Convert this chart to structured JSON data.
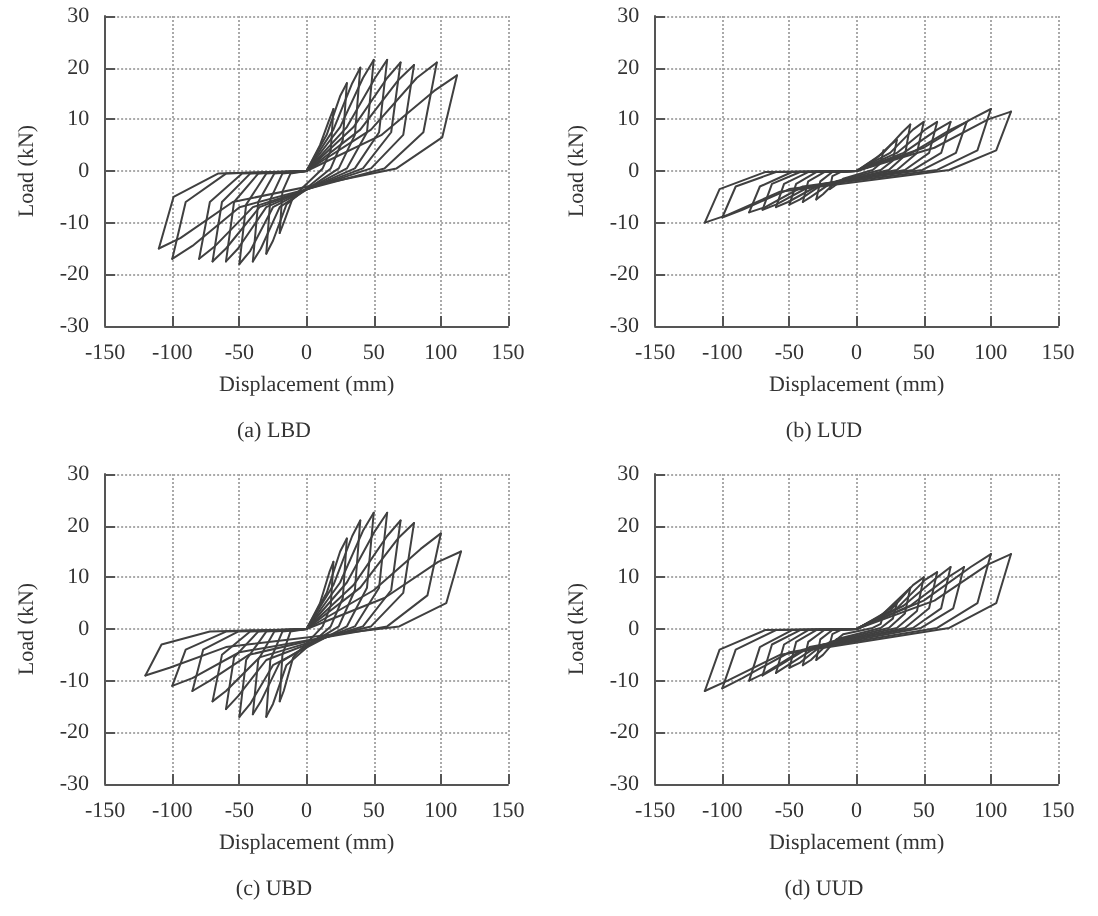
{
  "chart_data": [
    {
      "type": "line",
      "title": "(a) LBD",
      "xlabel": "Displacement (mm)",
      "ylabel": "Load (kN)",
      "xlim": [
        -150,
        150
      ],
      "ylim": [
        -30,
        30
      ],
      "xticks": [
        -150,
        -100,
        -50,
        0,
        50,
        100,
        150
      ],
      "yticks": [
        -30,
        -20,
        -10,
        0,
        10,
        20,
        30
      ],
      "grid": true,
      "marker": "none",
      "line_style": "solid",
      "series": [
        {
          "color": "#404040",
          "x": [
            0,
            10,
            17,
            20
          ],
          "values": [
            0,
            5,
            10,
            12
          ]
        },
        {
          "color": "#404040",
          "x": [
            -20,
            -17,
            -10,
            12,
            18,
            20
          ],
          "values": [
            -12,
            -10,
            -5,
            0.5,
            4,
            12
          ]
        },
        {
          "color": "#404040",
          "x": [
            -20,
            -18,
            -12,
            0,
            15,
            25,
            30
          ],
          "values": [
            -12,
            -4,
            -0.5,
            0,
            7,
            14.5,
            17
          ]
        },
        {
          "color": "#404040",
          "x": [
            -30,
            -25,
            -15,
            18,
            27,
            30
          ],
          "values": [
            -16,
            -13.5,
            -6.5,
            0.5,
            6,
            17
          ]
        },
        {
          "color": "#404040",
          "x": [
            -30,
            -27,
            -18,
            0,
            20,
            34,
            40
          ],
          "values": [
            -16,
            -5.5,
            -0.5,
            0,
            8,
            17,
            20
          ]
        },
        {
          "color": "#404040",
          "x": [
            -40,
            -34,
            -20,
            24,
            36,
            40
          ],
          "values": [
            -17.5,
            -15,
            -7,
            0.5,
            7,
            20
          ]
        },
        {
          "color": "#404040",
          "x": [
            -40,
            -36,
            -24,
            0,
            25,
            42,
            50
          ],
          "values": [
            -17.5,
            -6,
            -0.5,
            0,
            8.5,
            18,
            21.5
          ]
        },
        {
          "color": "#404040",
          "x": [
            -50,
            -42,
            -25,
            30,
            45,
            50
          ],
          "values": [
            -18,
            -15.5,
            -7,
            0.5,
            7.5,
            21.5
          ]
        },
        {
          "color": "#404040",
          "x": [
            -50,
            -45,
            -30,
            0,
            30,
            51,
            60
          ],
          "values": [
            -18,
            -6.5,
            -0.5,
            0,
            8.5,
            18,
            21.5
          ]
        },
        {
          "color": "#404040",
          "x": [
            -60,
            -51,
            -30,
            36,
            54,
            60
          ],
          "values": [
            -17.5,
            -15,
            -7,
            0.5,
            7.5,
            21.5
          ]
        },
        {
          "color": "#404040",
          "x": [
            -60,
            -54,
            -36,
            0,
            35,
            60,
            70
          ],
          "values": [
            -17.5,
            -6,
            -0.5,
            0,
            8.5,
            18,
            21
          ]
        },
        {
          "color": "#404040",
          "x": [
            -70,
            -60,
            -35,
            42,
            63,
            70
          ],
          "values": [
            -17.5,
            -15,
            -7,
            0.5,
            7.5,
            21
          ]
        },
        {
          "color": "#404040",
          "x": [
            -70,
            -63,
            -42,
            0,
            40,
            68,
            80
          ],
          "values": [
            -17.5,
            -6,
            -0.5,
            0,
            8,
            17.5,
            20.5
          ]
        },
        {
          "color": "#404040",
          "x": [
            -80,
            -68,
            -40,
            48,
            72,
            80
          ],
          "values": [
            -17,
            -14.5,
            -7,
            0.5,
            7,
            20.5
          ]
        },
        {
          "color": "#404040",
          "x": [
            -80,
            -72,
            -48,
            0,
            48,
            82,
            97
          ],
          "values": [
            -17,
            -6,
            -0.5,
            0,
            8,
            18,
            21
          ]
        },
        {
          "color": "#404040",
          "x": [
            -100,
            -85,
            -50,
            58,
            87,
            97
          ],
          "values": [
            -17,
            -14.5,
            -7,
            0.5,
            7.5,
            21
          ]
        },
        {
          "color": "#404040",
          "x": [
            -100,
            -90,
            -60,
            0,
            56,
            95,
            112
          ],
          "values": [
            -17,
            -6,
            -0.5,
            0,
            7,
            15.5,
            18.5
          ]
        },
        {
          "color": "#404040",
          "x": [
            -110,
            -94,
            -55,
            67,
            101,
            112
          ],
          "values": [
            -15,
            -13,
            -6,
            0.5,
            6.5,
            18.5
          ]
        },
        {
          "color": "#404040",
          "x": [
            -110,
            -99,
            -66,
            0
          ],
          "values": [
            -15,
            -5,
            -0.5,
            0
          ]
        }
      ]
    },
    {
      "type": "line",
      "title": "(b) LUD",
      "xlabel": "Displacement (mm)",
      "ylabel": "Load (kN)",
      "xlim": [
        -150,
        150
      ],
      "ylim": [
        -30,
        30
      ],
      "xticks": [
        -150,
        -100,
        -50,
        0,
        50,
        100,
        150
      ],
      "yticks": [
        -30,
        -20,
        -10,
        0,
        10,
        20,
        30
      ],
      "grid": true,
      "marker": "none",
      "line_style": "solid",
      "series": [
        {
          "color": "#404040",
          "x": [
            -20,
            -17,
            -10,
            12,
            18,
            20
          ],
          "values": [
            -3.5,
            -3,
            -1.5,
            0.2,
            1.5,
            4
          ]
        },
        {
          "color": "#404040",
          "x": [
            -20,
            -18,
            -12,
            0,
            15,
            25,
            30
          ],
          "values": [
            -3.5,
            -1,
            -0.2,
            0,
            2.5,
            5,
            6
          ]
        },
        {
          "color": "#404040",
          "x": [
            -30,
            -25,
            -15,
            18,
            27,
            30
          ],
          "values": [
            -5.5,
            -4.5,
            -2,
            0.2,
            2,
            6
          ]
        },
        {
          "color": "#404040",
          "x": [
            -30,
            -27,
            -18,
            0,
            20,
            34,
            40
          ],
          "values": [
            -5.5,
            -2,
            -0.2,
            0,
            3.5,
            7.5,
            9
          ]
        },
        {
          "color": "#404040",
          "x": [
            -40,
            -34,
            -20,
            24,
            36,
            40
          ],
          "values": [
            -6,
            -5,
            -2.5,
            0.2,
            3,
            9
          ]
        },
        {
          "color": "#404040",
          "x": [
            -40,
            -36,
            -24,
            0,
            25,
            42,
            50
          ],
          "values": [
            -6,
            -2,
            -0.2,
            0,
            3.5,
            8,
            9.5
          ]
        },
        {
          "color": "#404040",
          "x": [
            -50,
            -42,
            -25,
            30,
            45,
            50
          ],
          "values": [
            -6.5,
            -5.5,
            -2.5,
            0.2,
            3.5,
            9.5
          ]
        },
        {
          "color": "#404040",
          "x": [
            -50,
            -45,
            -30,
            0,
            30,
            51,
            60
          ],
          "values": [
            -6.5,
            -2.5,
            -0.2,
            0,
            3.5,
            8,
            9.5
          ]
        },
        {
          "color": "#404040",
          "x": [
            -60,
            -51,
            -30,
            36,
            54,
            60
          ],
          "values": [
            -7,
            -6,
            -3,
            0.2,
            3.5,
            9.5
          ]
        },
        {
          "color": "#404040",
          "x": [
            -60,
            -54,
            -36,
            0,
            35,
            60,
            70
          ],
          "values": [
            -7,
            -2.5,
            -0.2,
            0,
            3.5,
            8,
            9.5
          ]
        },
        {
          "color": "#404040",
          "x": [
            -70,
            -60,
            -35,
            42,
            63,
            70
          ],
          "values": [
            -7.5,
            -6.5,
            -3,
            0.2,
            3.5,
            9.5
          ]
        },
        {
          "color": "#404040",
          "x": [
            -70,
            -63,
            -42,
            0,
            41,
            70,
            82
          ],
          "values": [
            -7.5,
            -2.5,
            -0.2,
            0,
            3.5,
            8,
            9.5
          ]
        },
        {
          "color": "#404040",
          "x": [
            -80,
            -68,
            -40,
            49,
            74,
            82
          ],
          "values": [
            -8,
            -7,
            -3,
            0.2,
            3.5,
            9.5
          ]
        },
        {
          "color": "#404040",
          "x": [
            -80,
            -72,
            -48,
            0,
            50,
            85,
            100
          ],
          "values": [
            -8,
            -3,
            -0.2,
            0,
            4.5,
            10,
            12
          ]
        },
        {
          "color": "#404040",
          "x": [
            -100,
            -85,
            -50,
            60,
            90,
            100
          ],
          "values": [
            -9,
            -7.5,
            -3.5,
            0.2,
            4,
            12
          ]
        },
        {
          "color": "#404040",
          "x": [
            -100,
            -90,
            -60,
            0,
            58,
            98,
            115
          ],
          "values": [
            -9,
            -3,
            -0.2,
            0,
            4.5,
            10,
            11.5
          ]
        },
        {
          "color": "#404040",
          "x": [
            -113,
            -96,
            -57,
            69,
            104,
            115
          ],
          "values": [
            -10,
            -8.5,
            -4,
            0.2,
            4,
            11.5
          ]
        },
        {
          "color": "#404040",
          "x": [
            -113,
            -102,
            -68,
            0
          ],
          "values": [
            -10,
            -3.5,
            -0.2,
            0
          ]
        }
      ]
    },
    {
      "type": "line",
      "title": "(c) UBD",
      "xlabel": "Displacement (mm)",
      "ylabel": "Load (kN)",
      "xlim": [
        -150,
        150
      ],
      "ylim": [
        -30,
        30
      ],
      "xticks": [
        -150,
        -100,
        -50,
        0,
        50,
        100,
        150
      ],
      "yticks": [
        -30,
        -20,
        -10,
        0,
        10,
        20,
        30
      ],
      "grid": true,
      "marker": "none",
      "line_style": "solid",
      "series": [
        {
          "color": "#404040",
          "x": [
            0,
            10,
            17,
            20
          ],
          "values": [
            0,
            5,
            11,
            13
          ]
        },
        {
          "color": "#404040",
          "x": [
            -20,
            -17,
            -10,
            12,
            18,
            20
          ],
          "values": [
            -14,
            -12,
            -5.5,
            0.5,
            4.5,
            13
          ]
        },
        {
          "color": "#404040",
          "x": [
            -20,
            -18,
            -12,
            0,
            15,
            25,
            30
          ],
          "values": [
            -14,
            -5,
            -0.5,
            0,
            7,
            15,
            17.5
          ]
        },
        {
          "color": "#404040",
          "x": [
            -30,
            -25,
            -15,
            18,
            27,
            30
          ],
          "values": [
            -17,
            -14.5,
            -7,
            0.5,
            6,
            17.5
          ]
        },
        {
          "color": "#404040",
          "x": [
            -30,
            -27,
            -18,
            0,
            20,
            34,
            40
          ],
          "values": [
            -17,
            -6,
            -0.5,
            0,
            8.5,
            18,
            21
          ]
        },
        {
          "color": "#404040",
          "x": [
            -40,
            -34,
            -20,
            24,
            36,
            40
          ],
          "values": [
            -16.5,
            -14,
            -6.5,
            0.5,
            7.5,
            21
          ]
        },
        {
          "color": "#404040",
          "x": [
            -40,
            -36,
            -24,
            0,
            25,
            42,
            50
          ],
          "values": [
            -16.5,
            -6,
            -0.5,
            0,
            9,
            19,
            22.5
          ]
        },
        {
          "color": "#404040",
          "x": [
            -50,
            -42,
            -25,
            30,
            45,
            50
          ],
          "values": [
            -17,
            -14.5,
            -7,
            0.5,
            8,
            22.5
          ]
        },
        {
          "color": "#404040",
          "x": [
            -50,
            -45,
            -30,
            0,
            30,
            51,
            60
          ],
          "values": [
            -17,
            -6,
            -0.5,
            0,
            9,
            19,
            22.5
          ]
        },
        {
          "color": "#404040",
          "x": [
            -60,
            -51,
            -30,
            36,
            54,
            60
          ],
          "values": [
            -15.5,
            -13,
            -6,
            0.5,
            8,
            22.5
          ]
        },
        {
          "color": "#404040",
          "x": [
            -60,
            -54,
            -36,
            0,
            35,
            60,
            70
          ],
          "values": [
            -15.5,
            -5.5,
            -0.5,
            0,
            8.5,
            18,
            21
          ]
        },
        {
          "color": "#404040",
          "x": [
            -70,
            -60,
            -35,
            42,
            63,
            70
          ],
          "values": [
            -14,
            -12,
            -5.5,
            0.5,
            7.5,
            21
          ]
        },
        {
          "color": "#404040",
          "x": [
            -70,
            -63,
            -42,
            0,
            40,
            68,
            80
          ],
          "values": [
            -14,
            -5,
            -0.5,
            0,
            8,
            17.5,
            20.5
          ]
        },
        {
          "color": "#404040",
          "x": [
            -85,
            -72,
            -43,
            48,
            72,
            80
          ],
          "values": [
            -12,
            -10,
            -5,
            0.5,
            7,
            20.5
          ]
        },
        {
          "color": "#404040",
          "x": [
            -85,
            -77,
            -51,
            0,
            50,
            85,
            100
          ],
          "values": [
            -12,
            -4,
            -0.5,
            0,
            7.5,
            15.5,
            18.5
          ]
        },
        {
          "color": "#404040",
          "x": [
            -100,
            -85,
            -50,
            60,
            90,
            100
          ],
          "values": [
            -11,
            -9.5,
            -4.5,
            0.5,
            6.5,
            18.5
          ]
        },
        {
          "color": "#404040",
          "x": [
            -100,
            -90,
            -60,
            0,
            58,
            98,
            115
          ],
          "values": [
            -11,
            -4,
            -0.5,
            0,
            6,
            13,
            15
          ]
        },
        {
          "color": "#404040",
          "x": [
            -120,
            -102,
            -60,
            69,
            104,
            115
          ],
          "values": [
            -9,
            -7.5,
            -3.5,
            0.5,
            5,
            15
          ]
        },
        {
          "color": "#404040",
          "x": [
            -120,
            -108,
            -72,
            0
          ],
          "values": [
            -9,
            -3,
            -0.5,
            0
          ]
        }
      ]
    },
    {
      "type": "line",
      "title": "(d) UUD",
      "xlabel": "Displacement (mm)",
      "ylabel": "Load (kN)",
      "xlim": [
        -150,
        150
      ],
      "ylim": [
        -30,
        30
      ],
      "xticks": [
        -150,
        -100,
        -50,
        0,
        50,
        100,
        150
      ],
      "yticks": [
        -30,
        -20,
        -10,
        0,
        10,
        20,
        30
      ],
      "grid": true,
      "marker": "none",
      "line_style": "solid",
      "series": [
        {
          "color": "#404040",
          "x": [
            -20,
            -17,
            -10,
            12,
            18,
            20
          ],
          "values": [
            -3,
            -2.5,
            -1,
            0.2,
            1,
            3
          ]
        },
        {
          "color": "#404040",
          "x": [
            -20,
            -18,
            -12,
            0,
            15,
            25,
            30
          ],
          "values": [
            -3,
            -1,
            -0.2,
            0,
            2,
            4,
            5
          ]
        },
        {
          "color": "#404040",
          "x": [
            -30,
            -25,
            -15,
            18,
            27,
            30
          ],
          "values": [
            -6,
            -5,
            -2,
            0.2,
            2,
            5
          ]
        },
        {
          "color": "#404040",
          "x": [
            -30,
            -27,
            -18,
            0,
            20,
            34,
            40
          ],
          "values": [
            -6,
            -2,
            -0.2,
            0,
            3,
            6.5,
            8
          ]
        },
        {
          "color": "#404040",
          "x": [
            -40,
            -34,
            -20,
            24,
            36,
            40
          ],
          "values": [
            -7,
            -6,
            -2.5,
            0.2,
            3,
            8
          ]
        },
        {
          "color": "#404040",
          "x": [
            -40,
            -36,
            -24,
            0,
            25,
            42,
            50
          ],
          "values": [
            -7,
            -2.5,
            -0.2,
            0,
            3.5,
            8.5,
            10
          ]
        },
        {
          "color": "#404040",
          "x": [
            -50,
            -42,
            -25,
            30,
            45,
            50
          ],
          "values": [
            -7.5,
            -6.5,
            -3,
            0.2,
            3.5,
            10
          ]
        },
        {
          "color": "#404040",
          "x": [
            -50,
            -45,
            -30,
            0,
            30,
            51,
            60
          ],
          "values": [
            -7.5,
            -2.5,
            -0.2,
            0,
            4,
            9.5,
            11
          ]
        },
        {
          "color": "#404040",
          "x": [
            -60,
            -51,
            -30,
            36,
            54,
            60
          ],
          "values": [
            -8.5,
            -7,
            -3.5,
            0.2,
            4,
            11
          ]
        },
        {
          "color": "#404040",
          "x": [
            -60,
            -54,
            -36,
            0,
            35,
            60,
            70
          ],
          "values": [
            -8.5,
            -3,
            -0.2,
            0,
            4.5,
            10,
            12
          ]
        },
        {
          "color": "#404040",
          "x": [
            -70,
            -60,
            -35,
            42,
            63,
            70
          ],
          "values": [
            -9,
            -7.5,
            -3.5,
            0.2,
            4,
            12
          ]
        },
        {
          "color": "#404040",
          "x": [
            -70,
            -63,
            -42,
            0,
            40,
            68,
            80
          ],
          "values": [
            -9,
            -3,
            -0.2,
            0,
            4.5,
            10,
            12
          ]
        },
        {
          "color": "#404040",
          "x": [
            -80,
            -68,
            -40,
            48,
            72,
            80
          ],
          "values": [
            -10,
            -8.5,
            -4,
            0.2,
            4,
            12
          ]
        },
        {
          "color": "#404040",
          "x": [
            -80,
            -72,
            -48,
            0,
            50,
            85,
            100
          ],
          "values": [
            -10,
            -3.5,
            -0.2,
            0,
            5.5,
            12,
            14.5
          ]
        },
        {
          "color": "#404040",
          "x": [
            -100,
            -85,
            -50,
            60,
            90,
            100
          ],
          "values": [
            -11.5,
            -9.5,
            -4.5,
            0.2,
            5,
            14.5
          ]
        },
        {
          "color": "#404040",
          "x": [
            -100,
            -90,
            -60,
            0,
            58,
            98,
            115
          ],
          "values": [
            -11.5,
            -4,
            -0.2,
            0,
            5.5,
            12.5,
            14.5
          ]
        },
        {
          "color": "#404040",
          "x": [
            -113,
            -96,
            -57,
            69,
            104,
            115
          ],
          "values": [
            -12,
            -10,
            -5,
            0.2,
            5,
            14.5
          ]
        },
        {
          "color": "#404040",
          "x": [
            -113,
            -102,
            -68,
            0
          ],
          "values": [
            -12,
            -4,
            -0.2,
            0
          ]
        }
      ]
    }
  ]
}
